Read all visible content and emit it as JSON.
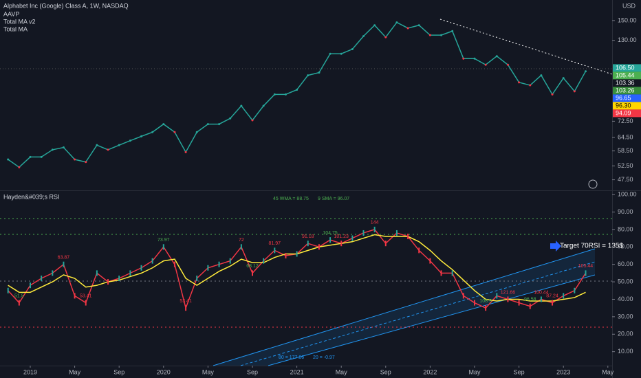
{
  "chart_data": [
    {
      "type": "line",
      "title": "Alphabet Inc (Google) Class A, 1W, NASDAQ",
      "indicators": [
        "AAVP",
        "Total MA v2",
        "Total MA"
      ],
      "currency": "USD",
      "log_scale": true,
      "color": "#26a69a",
      "x": [
        "2018-11",
        "2018-12",
        "2019-01",
        "2019-02",
        "2019-03",
        "2019-04",
        "2019-05",
        "2019-06",
        "2019-07",
        "2019-08",
        "2019-09",
        "2019-10",
        "2019-11",
        "2019-12",
        "2020-01",
        "2020-02",
        "2020-03",
        "2020-04",
        "2020-05",
        "2020-06",
        "2020-07",
        "2020-08",
        "2020-09",
        "2020-10",
        "2020-11",
        "2020-12",
        "2021-01",
        "2021-02",
        "2021-03",
        "2021-04",
        "2021-05",
        "2021-06",
        "2021-07",
        "2021-08",
        "2021-09",
        "2021-10",
        "2021-11",
        "2021-12",
        "2022-01",
        "2022-02",
        "2022-03",
        "2022-04",
        "2022-05",
        "2022-06",
        "2022-07",
        "2022-08",
        "2022-09",
        "2022-10",
        "2022-11",
        "2022-12",
        "2023-01",
        "2023-02",
        "2023-03"
      ],
      "values": [
        55,
        52,
        56,
        56,
        59,
        60,
        55,
        54,
        61,
        59,
        61,
        63,
        65,
        67,
        71,
        67,
        58,
        67,
        71,
        71,
        74,
        81,
        73,
        81,
        88,
        88,
        91,
        101,
        103,
        118,
        118,
        122,
        134,
        145,
        133,
        148,
        142,
        145,
        135,
        135,
        139,
        114,
        114,
        109,
        116,
        109,
        96,
        94,
        101,
        88,
        99,
        90,
        104
      ],
      "ylim": [
        44,
        174
      ],
      "yticks": [
        {
          "value": 150,
          "label": "150.00"
        },
        {
          "value": 130,
          "label": "130.00"
        },
        {
          "value": 72.5,
          "label": "72.50"
        },
        {
          "value": 64.5,
          "label": "64.50"
        },
        {
          "value": 58.5,
          "label": "58.50"
        },
        {
          "value": 52.5,
          "label": "52.50"
        },
        {
          "value": 47.5,
          "label": "47.50"
        }
      ],
      "price_labels": [
        {
          "value": 106.5,
          "label": "106.50",
          "color": "#26a69a"
        },
        {
          "value": 105.44,
          "label": "105.44",
          "color": "#4caf50"
        },
        {
          "value": 103.36,
          "label": "103.36",
          "color": "#131722"
        },
        {
          "value": 103.26,
          "label": "103.26",
          "color": "#388e3c"
        },
        {
          "value": 96.65,
          "label": "96.65",
          "color": "#2962ff"
        },
        {
          "value": 96.3,
          "label": "96.30",
          "color": "#ffd600"
        },
        {
          "value": 94.09,
          "label": "94.09",
          "color": "#f23645"
        }
      ],
      "xticks": [
        {
          "value": "2019-01",
          "label": "2019"
        },
        {
          "value": "2019-05",
          "label": "May"
        },
        {
          "value": "2019-09",
          "label": "Sep"
        },
        {
          "value": "2020-01",
          "label": "2020"
        },
        {
          "value": "2020-05",
          "label": "May"
        },
        {
          "value": "2020-09",
          "label": "Sep"
        },
        {
          "value": "2021-01",
          "label": "2021"
        },
        {
          "value": "2021-05",
          "label": "May"
        },
        {
          "value": "2021-09",
          "label": "Sep"
        },
        {
          "value": "2022-01",
          "label": "2022"
        },
        {
          "value": "2022-05",
          "label": "May"
        },
        {
          "value": "2022-09",
          "label": "Sep"
        },
        {
          "value": "2023-01",
          "label": "2023"
        },
        {
          "value": "2023-05",
          "label": "May"
        }
      ]
    },
    {
      "type": "line",
      "title": "Hayden&#039;s RSI",
      "legend": [
        "45 WMA = 88.75",
        "9 SMA = 96.07"
      ],
      "target": "Target 70RSI = 135$",
      "footer": [
        "80 = 177.66",
        "20 = -0.97"
      ],
      "series": [
        {
          "color": "#f23645",
          "values": [
            45,
            38,
            48,
            52,
            55,
            60,
            42,
            38,
            55,
            50,
            52,
            55,
            58,
            62,
            70,
            60,
            35,
            52,
            58,
            60,
            62,
            70,
            55,
            62,
            68,
            65,
            66,
            72,
            70,
            74,
            72,
            75,
            78,
            80,
            72,
            78,
            76,
            68,
            62,
            55,
            55,
            42,
            38,
            35,
            42,
            40,
            38,
            36,
            40,
            38,
            42,
            45,
            55
          ]
        },
        {
          "color": "#ffeb3b",
          "values": [
            48,
            44,
            44,
            47,
            50,
            54,
            52,
            47,
            48,
            50,
            51,
            53,
            55,
            58,
            62,
            63,
            52,
            48,
            52,
            56,
            59,
            63,
            61,
            61,
            64,
            66,
            66,
            68,
            70,
            71,
            72,
            73,
            75,
            77,
            76,
            76,
            76,
            73,
            68,
            62,
            57,
            51,
            45,
            40,
            39,
            40,
            40,
            39,
            39,
            39,
            40,
            41,
            44
          ]
        }
      ],
      "annotations": [
        {
          "text": "51.5",
          "x": "2018-12"
        },
        {
          "text": "63.87",
          "x": "2019-04"
        },
        {
          "text": "53.41",
          "x": "2019-06"
        },
        {
          "text": "73.97",
          "x": "2020-01"
        },
        {
          "text": "53.41",
          "x": "2020-03"
        },
        {
          "text": "72",
          "x": "2020-08"
        },
        {
          "text": "68.12",
          "x": "2020-09"
        },
        {
          "text": "81.97",
          "x": "2020-11"
        },
        {
          "text": "91.18",
          "x": "2021-02"
        },
        {
          "text": "104.75",
          "x": "2021-04"
        },
        {
          "text": "101.23",
          "x": "2021-05"
        },
        {
          "text": "144",
          "x": "2021-08"
        },
        {
          "text": "108.9",
          "x": "2022-06"
        },
        {
          "text": "121.66",
          "x": "2022-08"
        },
        {
          "text": "100.44",
          "x": "2022-11"
        },
        {
          "text": "96.58",
          "x": "2022-10"
        },
        {
          "text": "87.24",
          "x": "2022-12"
        },
        {
          "text": "105.44",
          "x": "2023-03"
        }
      ],
      "ylim": [
        2,
        102
      ],
      "yticks": [
        {
          "value": 100,
          "label": "100.00"
        },
        {
          "value": 90,
          "label": "90.00"
        },
        {
          "value": 80,
          "label": "80.00"
        },
        {
          "value": 70,
          "label": "70.00"
        },
        {
          "value": 60,
          "label": "60.00"
        },
        {
          "value": 50,
          "label": "50.00"
        },
        {
          "value": 40,
          "label": "40.00"
        },
        {
          "value": 30,
          "label": "30.00"
        },
        {
          "value": 20,
          "label": "20.00"
        },
        {
          "value": 10,
          "label": "10.00"
        }
      ]
    }
  ]
}
